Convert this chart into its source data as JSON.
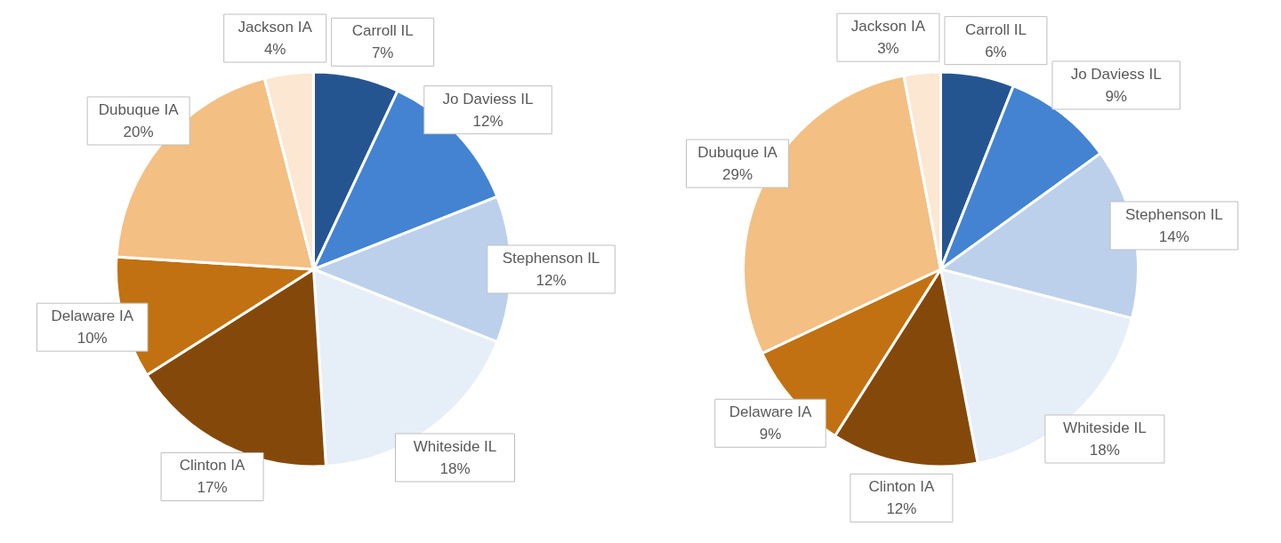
{
  "chart_data": [
    {
      "type": "pie",
      "categories": [
        "Carroll IL",
        "Jo Daviess IL",
        "Stephenson IL",
        "Whiteside IL",
        "Clinton IA",
        "Delaware IA",
        "Dubuque IA",
        "Jackson IA"
      ],
      "values": [
        7,
        12,
        12,
        18,
        17,
        10,
        20,
        4
      ],
      "value_labels": [
        "7%",
        "12%",
        "12%",
        "18%",
        "17%",
        "10%",
        "20%",
        "4%"
      ],
      "colors": [
        "#255591",
        "#4383d1",
        "#bcd0ec",
        "#e6eef8",
        "#84490a",
        "#c17111",
        "#f3bf82",
        "#fce7d2"
      ],
      "legend": false
    },
    {
      "type": "pie",
      "categories": [
        "Carroll IL",
        "Jo Daviess IL",
        "Stephenson IL",
        "Whiteside IL",
        "Clinton IA",
        "Delaware IA",
        "Dubuque IA",
        "Jackson IA"
      ],
      "values": [
        6,
        9,
        14,
        18,
        12,
        9,
        29,
        3
      ],
      "value_labels": [
        "6%",
        "9%",
        "14%",
        "18%",
        "12%",
        "9%",
        "29%",
        "3%"
      ],
      "colors": [
        "#255591",
        "#4383d1",
        "#bcd0ec",
        "#e6eef8",
        "#84490a",
        "#c17111",
        "#f3bf82",
        "#fce7d2"
      ],
      "legend": false
    }
  ]
}
